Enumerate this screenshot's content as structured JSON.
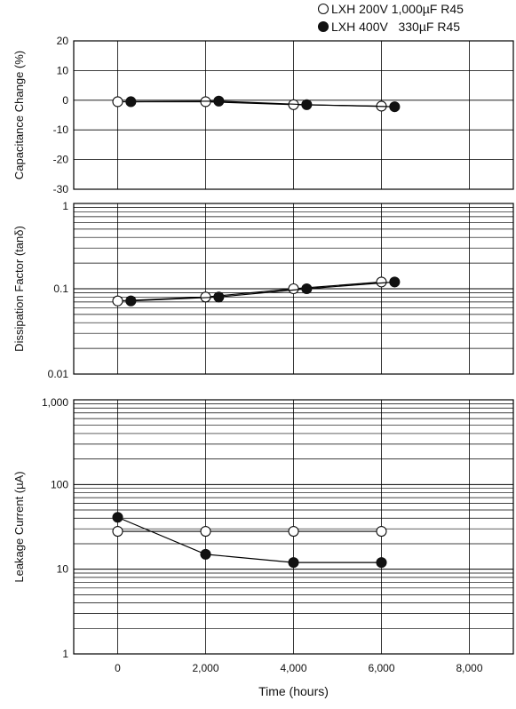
{
  "legend": [
    {
      "label": "LXH 200V 1,000µF R45",
      "marker": "open-circle"
    },
    {
      "label": "LXH 400V   330µF R45",
      "marker": "filled-circle"
    }
  ],
  "xlabel": "Time (hours)",
  "colors": {
    "line": "#000000",
    "grid": "#000000",
    "open_fill": "#ffffff",
    "filled_fill": "#111111"
  },
  "chart_data": [
    {
      "type": "line",
      "ylabel": "Capacitance Change (%)",
      "yscale": "linear",
      "xlim": [
        -1000,
        9000
      ],
      "ylim": [
        -30,
        20
      ],
      "yticks": [
        20,
        10,
        0,
        -10,
        -20,
        -30
      ],
      "ytick_labels": [
        "20",
        "10",
        "0",
        "-10",
        "-20",
        "-30"
      ],
      "series": [
        {
          "name": "LXH 200V 1,000µF R45",
          "marker": "open-circle",
          "x": [
            0,
            2000,
            4000,
            6000
          ],
          "y": [
            -0.5,
            -0.5,
            -1.5,
            -2
          ]
        },
        {
          "name": "LXH 400V   330µF R45",
          "marker": "filled-circle",
          "x": [
            300,
            2300,
            4300,
            6300
          ],
          "y": [
            -0.5,
            -0.3,
            -1.5,
            -2.2
          ]
        }
      ]
    },
    {
      "type": "line",
      "ylabel": "Dissipation Factor (tanδ)",
      "yscale": "log",
      "xlim": [
        -1000,
        9000
      ],
      "ylim": [
        0.01,
        1
      ],
      "yticks": [
        1,
        0.1,
        0.01
      ],
      "ytick_labels": [
        "1",
        "0.1",
        "0.01"
      ],
      "series": [
        {
          "name": "LXH 200V 1,000µF R45",
          "marker": "open-circle",
          "x": [
            0,
            2000,
            4000,
            6000
          ],
          "y": [
            0.072,
            0.08,
            0.1,
            0.12
          ]
        },
        {
          "name": "LXH 400V   330µF R45",
          "marker": "filled-circle",
          "x": [
            300,
            2300,
            4300,
            6300
          ],
          "y": [
            0.072,
            0.08,
            0.1,
            0.12
          ]
        }
      ]
    },
    {
      "type": "line",
      "ylabel": "Leakage Current (µA)",
      "yscale": "log",
      "xlim": [
        -1000,
        9000
      ],
      "ylim": [
        1,
        1000
      ],
      "yticks": [
        1000,
        100,
        10,
        1
      ],
      "ytick_labels": [
        "1,000",
        "100",
        "10",
        "1"
      ],
      "xticks": [
        0,
        2000,
        4000,
        6000,
        8000
      ],
      "xtick_labels": [
        "0",
        "2,000",
        "4,000",
        "6,000",
        "8,000"
      ],
      "series": [
        {
          "name": "LXH 200V 1,000µF R45",
          "marker": "open-circle",
          "x": [
            0,
            2000,
            4000,
            6000
          ],
          "y": [
            28,
            28,
            28,
            28
          ]
        },
        {
          "name": "LXH 400V   330µF R45",
          "marker": "filled-circle",
          "x": [
            0,
            2000,
            4000,
            6000
          ],
          "y": [
            41,
            15,
            12,
            12
          ]
        }
      ]
    }
  ]
}
